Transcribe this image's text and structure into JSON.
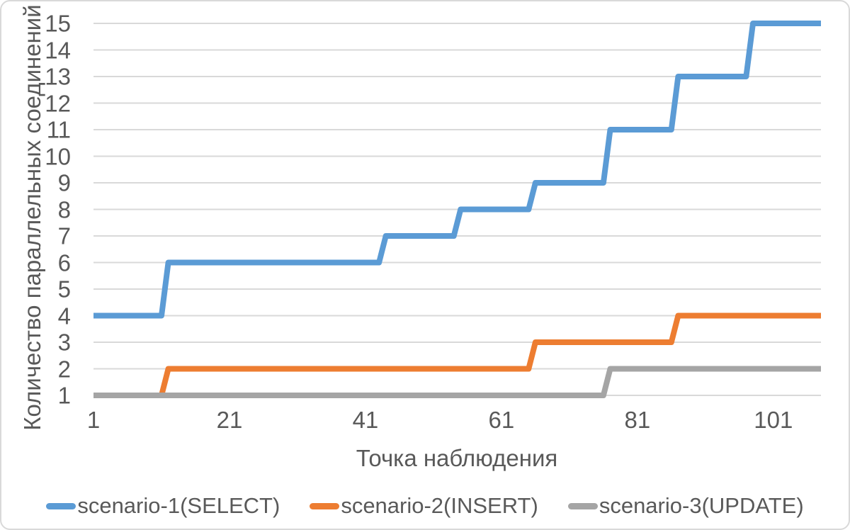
{
  "colors": {
    "text": "#595959",
    "gridline": "#d9d9d9",
    "frame_border": "#d9d9d9",
    "background": "#ffffff",
    "series_blue": "#5B9BD5",
    "series_orange": "#ED7D31",
    "series_gray": "#A5A5A5"
  },
  "chart_data": {
    "type": "line",
    "style": "step",
    "title": "",
    "xlabel": "Точка наблюдения",
    "ylabel": "Количество параллельных соединений",
    "xlim": [
      1,
      108
    ],
    "ylim": [
      1,
      15
    ],
    "x_ticks": [
      1,
      21,
      41,
      61,
      81,
      101
    ],
    "y_ticks": [
      1,
      2,
      3,
      4,
      5,
      6,
      7,
      8,
      9,
      10,
      11,
      12,
      13,
      14,
      15
    ],
    "grid": "horizontal",
    "legend_position": "bottom-center",
    "series": [
      {
        "name": "scenario-1(SELECT)",
        "color": "#5B9BD5",
        "segments": [
          {
            "from": 1,
            "to": 11,
            "value": 4
          },
          {
            "from": 12,
            "to": 43,
            "value": 6
          },
          {
            "from": 44,
            "to": 54,
            "value": 7
          },
          {
            "from": 55,
            "to": 65,
            "value": 8
          },
          {
            "from": 66,
            "to": 76,
            "value": 9
          },
          {
            "from": 77,
            "to": 86,
            "value": 11
          },
          {
            "from": 87,
            "to": 97,
            "value": 13
          },
          {
            "from": 98,
            "to": 108,
            "value": 15
          }
        ]
      },
      {
        "name": "scenario-2(INSERT)",
        "color": "#ED7D31",
        "segments": [
          {
            "from": 1,
            "to": 11,
            "value": 1
          },
          {
            "from": 12,
            "to": 65,
            "value": 2
          },
          {
            "from": 66,
            "to": 86,
            "value": 3
          },
          {
            "from": 87,
            "to": 108,
            "value": 4
          }
        ]
      },
      {
        "name": "scenario-3(UPDATE)",
        "color": "#A5A5A5",
        "segments": [
          {
            "from": 1,
            "to": 76,
            "value": 1
          },
          {
            "from": 77,
            "to": 108,
            "value": 2
          }
        ]
      }
    ]
  }
}
